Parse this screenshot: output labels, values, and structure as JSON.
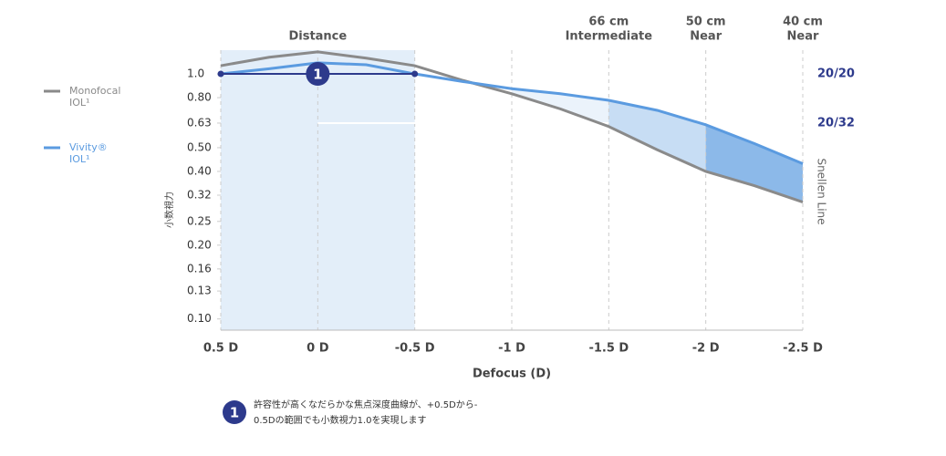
{
  "chart_data": {
    "type": "line",
    "xlabel": "Defocus (D)",
    "ylabel": "小数視力",
    "y2label": "Snellen Line",
    "x": [
      0.5,
      0.25,
      0,
      -0.25,
      -0.5,
      -0.75,
      -1,
      -1.25,
      -1.5,
      -1.75,
      -2,
      -2.25,
      -2.5
    ],
    "series": [
      {
        "name": "Monofocal IOL¹",
        "color": "#8a8a8a",
        "values": [
          1.08,
          1.17,
          1.23,
          1.16,
          1.08,
          0.94,
          0.83,
          0.72,
          0.61,
          0.49,
          0.4,
          0.35,
          0.3
        ]
      },
      {
        "name": "Vivity® IOL¹",
        "color": "#5b9be0",
        "values": [
          1.0,
          1.05,
          1.11,
          1.09,
          1.0,
          0.93,
          0.87,
          0.83,
          0.78,
          0.71,
          0.62,
          0.52,
          0.43
        ]
      }
    ],
    "xlim": [
      0.5,
      -2.5
    ],
    "xticks": [
      {
        "value": 0.5,
        "label": "0.5 D"
      },
      {
        "value": 0,
        "label": "0 D"
      },
      {
        "value": -0.5,
        "label": "-0.5 D"
      },
      {
        "value": -1,
        "label": "-1 D"
      },
      {
        "value": -1.5,
        "label": "-1.5 D"
      },
      {
        "value": -2,
        "label": "-2 D"
      },
      {
        "value": -2.5,
        "label": "-2.5 D"
      }
    ],
    "ylim": [
      0.09,
      1.25
    ],
    "log_y": true,
    "yticks": [
      {
        "value": 1,
        "label": "1.0"
      },
      {
        "value": 0.8,
        "label": "0.80"
      },
      0.63,
      {
        "value": 0.5,
        "label": "0.50"
      },
      {
        "value": 0.4,
        "label": "0.40"
      },
      0.32,
      0.25,
      {
        "value": 0.2,
        "label": "0.20"
      },
      0.16,
      0.13,
      {
        "value": 0.1,
        "label": "0.10"
      }
    ],
    "y2ticks": [
      {
        "value": 1,
        "label": "20/20"
      },
      {
        "value": 0.63,
        "label": "20/32"
      }
    ],
    "grid": "x",
    "legend": "left",
    "highlight_xrange": [
      0.5,
      -0.5
    ],
    "range_marker": {
      "xrange": [
        0.5,
        -0.5
      ],
      "y": 1,
      "label": "1",
      "color": "#2d3a8c"
    },
    "annotations": [
      {
        "x": 0,
        "lines": [
          "Distance"
        ]
      },
      {
        "x": -1.5,
        "lines": [
          "66 cm",
          "Intermediate"
        ]
      },
      {
        "x": -2,
        "lines": [
          "50 cm",
          "Near"
        ]
      },
      {
        "x": -2.5,
        "lines": [
          "40 cm",
          "Near"
        ]
      }
    ],
    "footnote": {
      "badge": "1",
      "lines": [
        "許容性が高くなだらかな焦点深度曲線が、+0.5Dから-",
        "0.5Dの範囲でも小数視力1.0を実現します"
      ]
    }
  }
}
